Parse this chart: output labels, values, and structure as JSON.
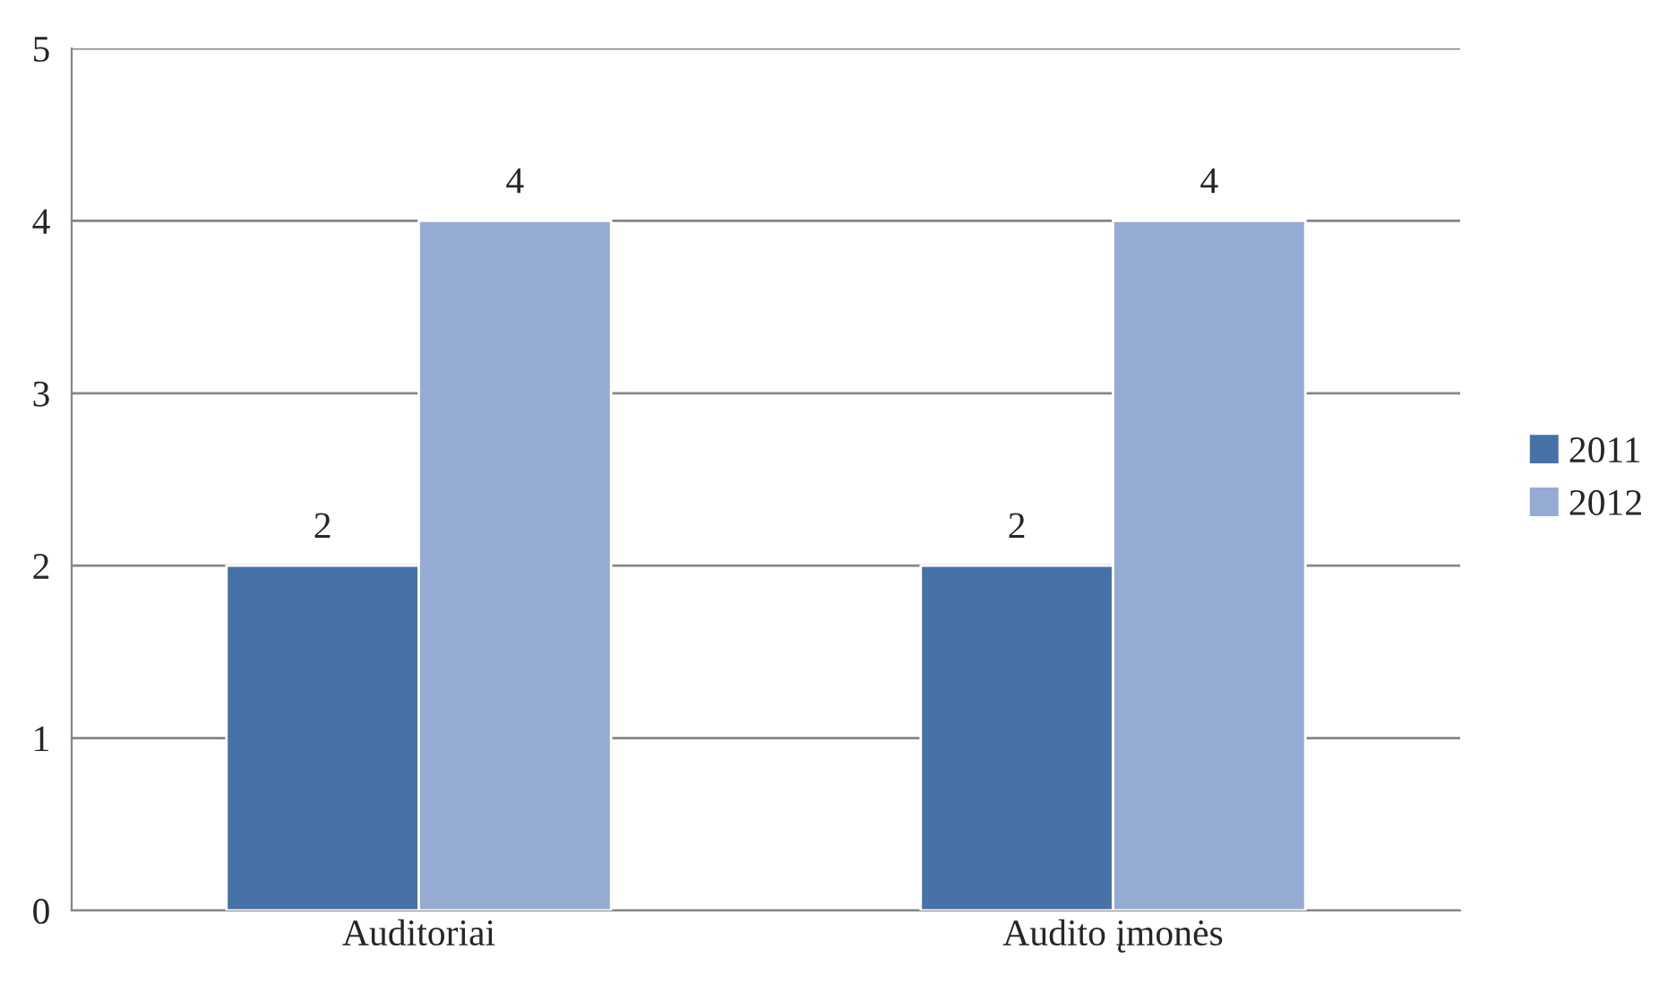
{
  "chart_data": {
    "type": "bar",
    "categories": [
      "Auditoriai",
      "Audito įmonės"
    ],
    "series": [
      {
        "name": "2011",
        "color": "#4672a8",
        "values": [
          2,
          2
        ]
      },
      {
        "name": "2012",
        "color": "#95abd3",
        "values": [
          4,
          4
        ]
      }
    ],
    "ylim": [
      0,
      5
    ],
    "yticks": [
      0,
      1,
      2,
      3,
      4,
      5
    ],
    "grid": "y",
    "legend": "right",
    "data_labels": true
  }
}
